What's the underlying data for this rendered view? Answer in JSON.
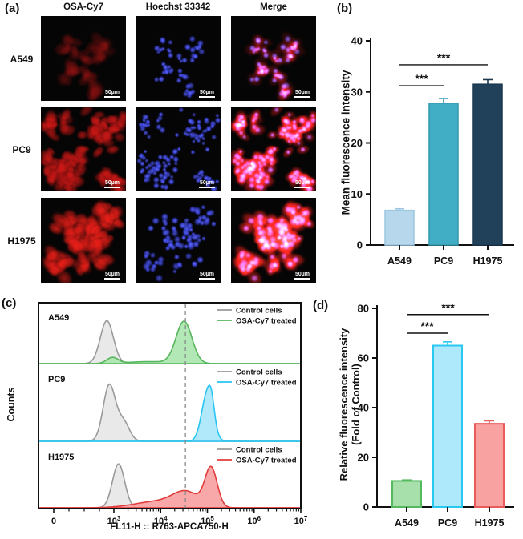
{
  "panels": {
    "a": {
      "label": "(a)",
      "columns": [
        "OSA-Cy7",
        "Hoechst 33342",
        "Merge"
      ],
      "rows": [
        "A549",
        "PC9",
        "H1975"
      ],
      "scale_bar_label": "50µm"
    },
    "b": {
      "label": "(b)"
    },
    "c": {
      "label": "(c)"
    },
    "d": {
      "label": "(d)"
    }
  },
  "microscopy": {
    "nucleus_rgb": [
      60,
      70,
      240
    ],
    "rows": [
      {
        "name": "A549",
        "seed": 7,
        "cell_count": 52,
        "cell_radius": 4.2,
        "red_rgb": [
          150,
          18,
          18
        ],
        "red_alpha": 0.5,
        "clusters": [
          [
            0.45,
            0.6,
            0.22,
            0.45
          ],
          [
            0.68,
            0.4,
            0.16,
            0.25
          ],
          [
            0.33,
            0.36,
            0.14,
            0.15
          ],
          [
            0.62,
            0.88,
            0.1,
            0.15
          ]
        ]
      },
      {
        "name": "PC9",
        "seed": 23,
        "cell_count": 140,
        "cell_radius": 4.0,
        "red_rgb": [
          205,
          24,
          22
        ],
        "red_alpha": 0.85,
        "clusters": [
          [
            0.28,
            0.72,
            0.3,
            0.4
          ],
          [
            0.72,
            0.3,
            0.28,
            0.3
          ],
          [
            0.15,
            0.2,
            0.18,
            0.15
          ],
          [
            0.85,
            0.85,
            0.18,
            0.15
          ]
        ]
      },
      {
        "name": "H1975",
        "seed": 41,
        "cell_count": 88,
        "cell_radius": 4.9,
        "red_rgb": [
          230,
          30,
          24
        ],
        "red_alpha": 0.95,
        "clusters": [
          [
            0.5,
            0.5,
            0.42,
            0.7
          ],
          [
            0.2,
            0.8,
            0.2,
            0.15
          ],
          [
            0.8,
            0.2,
            0.2,
            0.15
          ]
        ]
      }
    ]
  },
  "chart_data": [
    {
      "panel": "b",
      "type": "bar",
      "categories": [
        "A549",
        "PC9",
        "H1975"
      ],
      "values": [
        6.8,
        27.8,
        31.5
      ],
      "errors": [
        0.3,
        0.9,
        0.9
      ],
      "bar_colors": [
        "#b7d8ec",
        "#41aec5",
        "#214059"
      ],
      "bar_strokes": [
        "#9cc5e0",
        "#3399af",
        "#1a3850"
      ],
      "ylabel": "Mean fluorescence intensity",
      "ylim": [
        0,
        40
      ],
      "yticks": [
        0,
        10,
        20,
        30,
        40
      ],
      "grid": false,
      "significance": [
        {
          "from": 0,
          "to": 1,
          "y": 31.2,
          "label": "***"
        },
        {
          "from": 0,
          "to": 2,
          "y": 35.3,
          "label": "***"
        }
      ]
    },
    {
      "panel": "c",
      "type": "area",
      "xlabel": "FL11-H :: R763-APCA750-H",
      "ylabel": "Counts",
      "xscale": "biexponential",
      "xticks": [
        {
          "base": "0"
        },
        {
          "base": "10",
          "exp": "3"
        },
        {
          "base": "10",
          "exp": "4"
        },
        {
          "base": "10",
          "exp": "5"
        },
        {
          "base": "10",
          "exp": "6"
        },
        {
          "base": "10",
          "exp": "7"
        }
      ],
      "dashed_line_at_log": 4.53,
      "legend": [
        "Control cells",
        "OSA-Cy7 treated"
      ],
      "control_stroke": "#9a9a9a",
      "control_fill": "#e7e7e7",
      "subpanels": [
        {
          "name": "A549",
          "stroke": "#57b65c",
          "fill": "#a9e6ad",
          "control_peaks": [
            {
              "log": 2.85,
              "sigma": 0.14,
              "h": 0.88
            }
          ],
          "treated_peaks": [
            {
              "log": 4.5,
              "sigma": 0.17,
              "h": 0.86
            },
            {
              "log": 2.97,
              "sigma": 0.12,
              "h": 0.12
            },
            {
              "log": 3.75,
              "sigma": 0.45,
              "h": 0.04
            }
          ]
        },
        {
          "name": "PC9",
          "stroke": "#29c5f1",
          "fill": "#a8e7fa",
          "control_peaks": [
            {
              "log": 2.9,
              "sigma": 0.13,
              "h": 0.86
            },
            {
              "log": 3.2,
              "sigma": 0.13,
              "h": 0.3
            }
          ],
          "treated_peaks": [
            {
              "log": 5.0,
              "sigma": 0.12,
              "h": 0.75
            },
            {
              "log": 5.09,
              "sigma": 0.06,
              "h": 0.22
            }
          ]
        },
        {
          "name": "H1975",
          "stroke": "#e23b3b",
          "fill": "#f79f9f",
          "control_peaks": [
            {
              "log": 3.1,
              "sigma": 0.13,
              "h": 0.82
            }
          ],
          "treated_peaks": [
            {
              "log": 5.08,
              "sigma": 0.13,
              "h": 0.72
            },
            {
              "log": 4.55,
              "sigma": 0.28,
              "h": 0.26
            },
            {
              "log": 3.95,
              "sigma": 0.5,
              "h": 0.12
            }
          ]
        }
      ]
    },
    {
      "panel": "d",
      "type": "bar",
      "categories": [
        "A549",
        "PC9",
        "H1975"
      ],
      "values": [
        10.5,
        65,
        33.5
      ],
      "errors": [
        0.4,
        1.5,
        1.2
      ],
      "bar_colors": [
        "#a7e0ab",
        "#ade9fa",
        "#f9a2a2"
      ],
      "bar_strokes": [
        "#55b95f",
        "#29c8f0",
        "#ea5c5c"
      ],
      "ylabel": "Relative fluorescence intensity",
      "ylabel2": "(Fold of Control)",
      "ylim": [
        0,
        80
      ],
      "yticks": [
        0,
        20,
        40,
        60,
        80
      ],
      "grid": false,
      "significance": [
        {
          "from": 0,
          "to": 1,
          "y": 70,
          "label": "***"
        },
        {
          "from": 0,
          "to": 2,
          "y": 77.5,
          "label": "***"
        }
      ]
    }
  ]
}
